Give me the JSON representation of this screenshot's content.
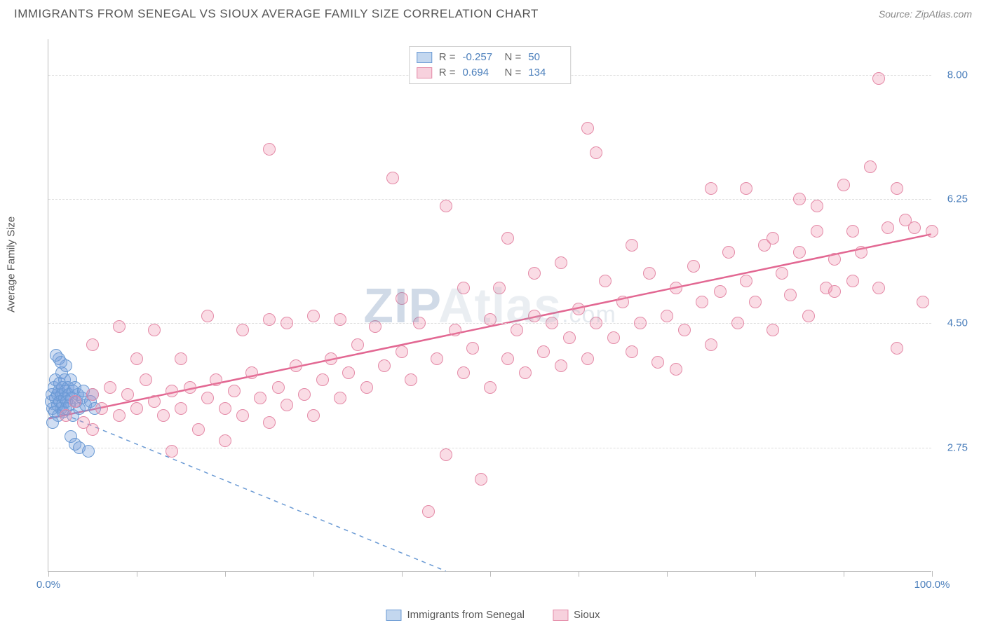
{
  "header": {
    "title": "IMMIGRANTS FROM SENEGAL VS SIOUX AVERAGE FAMILY SIZE CORRELATION CHART",
    "source_label": "Source: ",
    "source_value": "ZipAtlas.com"
  },
  "chart": {
    "type": "scatter",
    "y_label": "Average Family Size",
    "x_min": 0,
    "x_max": 100,
    "y_min": 1.0,
    "y_max": 8.5,
    "y_ticks": [
      2.75,
      4.5,
      6.25,
      8.0
    ],
    "y_tick_labels": [
      "2.75",
      "4.50",
      "6.25",
      "8.00"
    ],
    "x_ticks": [
      0,
      10,
      20,
      30,
      40,
      50,
      60,
      70,
      80,
      90,
      100
    ],
    "x_tick_labels": {
      "0": "0.0%",
      "100": "100.0%"
    },
    "background_color": "#ffffff",
    "grid_color": "#dddddd",
    "axis_color": "#bbbbbb",
    "tick_label_color": "#4a7ebb",
    "label_color": "#555555",
    "label_fontsize": 15,
    "marker_radius": 9,
    "series": [
      {
        "name": "Immigrants from Senegal",
        "color_fill": "rgba(120,160,220,0.35)",
        "color_stroke": "#6a9ad4",
        "swatch_fill": "#c3d7ef",
        "swatch_border": "#6a9ad4",
        "R": "-0.257",
        "N": "50",
        "trend": {
          "x1": 0,
          "y1": 3.3,
          "x2": 45,
          "y2": 1.0,
          "dash": "6,6",
          "width": 1.5,
          "color": "#6a9ad4"
        },
        "points": [
          [
            0.3,
            3.4
          ],
          [
            0.4,
            3.5
          ],
          [
            0.5,
            3.3
          ],
          [
            0.6,
            3.6
          ],
          [
            0.7,
            3.25
          ],
          [
            0.8,
            3.45
          ],
          [
            0.8,
            3.7
          ],
          [
            1.0,
            3.35
          ],
          [
            1.0,
            3.5
          ],
          [
            1.1,
            3.2
          ],
          [
            1.2,
            3.55
          ],
          [
            1.3,
            3.4
          ],
          [
            1.3,
            3.65
          ],
          [
            1.4,
            3.3
          ],
          [
            1.5,
            3.5
          ],
          [
            1.5,
            3.8
          ],
          [
            1.6,
            3.35
          ],
          [
            1.6,
            3.6
          ],
          [
            1.7,
            3.25
          ],
          [
            1.8,
            3.45
          ],
          [
            1.8,
            3.7
          ],
          [
            1.9,
            3.55
          ],
          [
            2.0,
            3.3
          ],
          [
            2.0,
            3.9
          ],
          [
            2.1,
            3.4
          ],
          [
            2.2,
            3.6
          ],
          [
            2.3,
            3.5
          ],
          [
            2.4,
            3.35
          ],
          [
            2.5,
            3.7
          ],
          [
            2.5,
            2.9
          ],
          [
            2.6,
            3.45
          ],
          [
            2.8,
            3.55
          ],
          [
            2.8,
            3.2
          ],
          [
            3.0,
            3.6
          ],
          [
            3.0,
            2.8
          ],
          [
            3.2,
            3.4
          ],
          [
            3.3,
            3.5
          ],
          [
            3.5,
            3.3
          ],
          [
            3.5,
            2.75
          ],
          [
            3.8,
            3.45
          ],
          [
            4.0,
            3.55
          ],
          [
            4.2,
            3.35
          ],
          [
            4.5,
            2.7
          ],
          [
            4.8,
            3.4
          ],
          [
            5.0,
            3.5
          ],
          [
            5.2,
            3.3
          ],
          [
            1.2,
            4.0
          ],
          [
            0.9,
            4.05
          ],
          [
            1.4,
            3.95
          ],
          [
            0.5,
            3.1
          ]
        ]
      },
      {
        "name": "Sioux",
        "color_fill": "rgba(240,140,170,0.3)",
        "color_stroke": "#e48aa7",
        "swatch_fill": "#f7d1dd",
        "swatch_border": "#e48aa7",
        "R": "0.694",
        "N": "134",
        "trend": {
          "x1": 0,
          "y1": 3.15,
          "x2": 100,
          "y2": 5.75,
          "dash": "none",
          "width": 2.5,
          "color": "#e26792"
        },
        "points": [
          [
            2,
            3.2
          ],
          [
            3,
            3.4
          ],
          [
            4,
            3.1
          ],
          [
            5,
            3.5
          ],
          [
            5,
            3.0
          ],
          [
            5,
            4.2
          ],
          [
            6,
            3.3
          ],
          [
            7,
            3.6
          ],
          [
            8,
            3.2
          ],
          [
            8,
            4.45
          ],
          [
            9,
            3.5
          ],
          [
            10,
            3.3
          ],
          [
            10,
            4.0
          ],
          [
            11,
            3.7
          ],
          [
            12,
            3.4
          ],
          [
            12,
            4.4
          ],
          [
            13,
            3.2
          ],
          [
            14,
            3.55
          ],
          [
            14,
            2.7
          ],
          [
            15,
            3.3
          ],
          [
            15,
            4.0
          ],
          [
            16,
            3.6
          ],
          [
            17,
            3.0
          ],
          [
            18,
            3.45
          ],
          [
            18,
            4.6
          ],
          [
            19,
            3.7
          ],
          [
            20,
            3.3
          ],
          [
            20,
            2.85
          ],
          [
            21,
            3.55
          ],
          [
            22,
            3.2
          ],
          [
            22,
            4.4
          ],
          [
            23,
            3.8
          ],
          [
            24,
            3.45
          ],
          [
            25,
            3.1
          ],
          [
            25,
            4.55
          ],
          [
            25,
            6.95
          ],
          [
            26,
            3.6
          ],
          [
            27,
            3.35
          ],
          [
            27,
            4.5
          ],
          [
            28,
            3.9
          ],
          [
            29,
            3.5
          ],
          [
            30,
            3.2
          ],
          [
            30,
            4.6
          ],
          [
            31,
            3.7
          ],
          [
            32,
            4.0
          ],
          [
            33,
            3.45
          ],
          [
            33,
            4.55
          ],
          [
            34,
            3.8
          ],
          [
            35,
            4.2
          ],
          [
            36,
            3.6
          ],
          [
            37,
            4.45
          ],
          [
            38,
            3.9
          ],
          [
            39,
            6.55
          ],
          [
            40,
            4.1
          ],
          [
            40,
            4.85
          ],
          [
            41,
            3.7
          ],
          [
            42,
            4.5
          ],
          [
            43,
            1.85
          ],
          [
            44,
            4.0
          ],
          [
            45,
            2.65
          ],
          [
            45,
            6.15
          ],
          [
            46,
            4.4
          ],
          [
            47,
            3.8
          ],
          [
            47,
            5.0
          ],
          [
            48,
            4.15
          ],
          [
            49,
            2.3
          ],
          [
            50,
            4.55
          ],
          [
            50,
            3.6
          ],
          [
            51,
            5.0
          ],
          [
            52,
            4.0
          ],
          [
            52,
            5.7
          ],
          [
            53,
            4.4
          ],
          [
            54,
            3.8
          ],
          [
            55,
            4.6
          ],
          [
            55,
            5.2
          ],
          [
            56,
            4.1
          ],
          [
            57,
            4.5
          ],
          [
            58,
            3.9
          ],
          [
            58,
            5.35
          ],
          [
            59,
            4.3
          ],
          [
            60,
            4.7
          ],
          [
            61,
            4.0
          ],
          [
            61,
            7.25
          ],
          [
            62,
            4.5
          ],
          [
            62,
            6.9
          ],
          [
            63,
            5.1
          ],
          [
            64,
            4.3
          ],
          [
            65,
            4.8
          ],
          [
            66,
            4.1
          ],
          [
            66,
            5.6
          ],
          [
            67,
            4.5
          ],
          [
            68,
            5.2
          ],
          [
            69,
            3.95
          ],
          [
            70,
            4.6
          ],
          [
            71,
            5.0
          ],
          [
            71,
            3.85
          ],
          [
            72,
            4.4
          ],
          [
            73,
            5.3
          ],
          [
            74,
            4.8
          ],
          [
            75,
            4.2
          ],
          [
            75,
            6.4
          ],
          [
            76,
            4.95
          ],
          [
            77,
            5.5
          ],
          [
            78,
            4.5
          ],
          [
            79,
            5.1
          ],
          [
            79,
            6.4
          ],
          [
            80,
            4.8
          ],
          [
            81,
            5.6
          ],
          [
            82,
            4.4
          ],
          [
            82,
            5.7
          ],
          [
            83,
            5.2
          ],
          [
            84,
            4.9
          ],
          [
            85,
            5.5
          ],
          [
            85,
            6.25
          ],
          [
            86,
            4.6
          ],
          [
            87,
            5.8
          ],
          [
            87,
            6.15
          ],
          [
            88,
            5.0
          ],
          [
            89,
            5.4
          ],
          [
            89,
            4.95
          ],
          [
            90,
            6.45
          ],
          [
            91,
            5.1
          ],
          [
            91,
            5.8
          ],
          [
            92,
            5.5
          ],
          [
            93,
            6.7
          ],
          [
            94,
            5.0
          ],
          [
            94,
            7.95
          ],
          [
            95,
            5.85
          ],
          [
            96,
            4.15
          ],
          [
            96,
            6.4
          ],
          [
            97,
            5.95
          ],
          [
            98,
            5.85
          ],
          [
            99,
            4.8
          ],
          [
            100,
            5.8
          ]
        ]
      }
    ]
  },
  "stats_box": {
    "r_label": "R =",
    "n_label": "N ="
  },
  "watermark": {
    "zip": "ZIP",
    "atlas": "Atlas",
    "dotcom": ".com"
  }
}
